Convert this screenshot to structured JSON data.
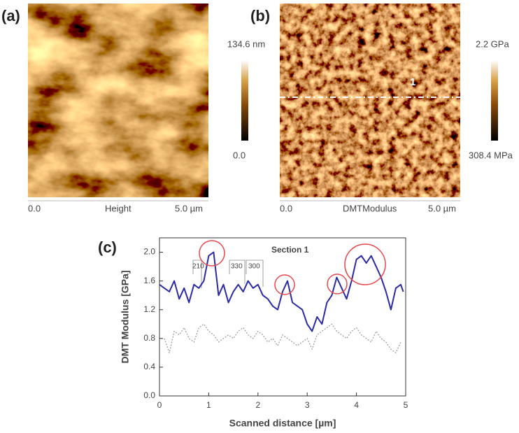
{
  "panels": [
    {
      "label": "(a)",
      "bar_max": "134.6 nm",
      "bar_min": "0.0",
      "axis_start": "0.0",
      "axis_name": "Height",
      "axis_end": "5.0 µm"
    },
    {
      "label": "(b)",
      "bar_max": "2.2 GPa",
      "bar_min": "308.4 MPa",
      "axis_start": "0.0",
      "axis_name": "DMTModulus",
      "axis_end": "5.0 µm",
      "section_label": "1"
    }
  ],
  "chart_data": {
    "type": "line",
    "panel_label": "(c)",
    "title": "Section 1",
    "xlabel": "Scanned distance [µm]",
    "ylabel": "DMT Modulus [GPa]",
    "annotations": [
      "210",
      "330",
      "300"
    ],
    "x": [
      0,
      0.1,
      0.2,
      0.3,
      0.4,
      0.5,
      0.6,
      0.7,
      0.8,
      0.9,
      1.0,
      1.1,
      1.2,
      1.3,
      1.4,
      1.5,
      1.6,
      1.7,
      1.8,
      1.9,
      2.0,
      2.1,
      2.2,
      2.3,
      2.4,
      2.5,
      2.6,
      2.7,
      2.8,
      2.9,
      3.0,
      3.1,
      3.2,
      3.3,
      3.4,
      3.5,
      3.6,
      3.7,
      3.8,
      3.9,
      4.0,
      4.1,
      4.2,
      4.3,
      4.4,
      4.5,
      4.6,
      4.7,
      4.8,
      4.9,
      4.95
    ],
    "series": [
      {
        "color": "#2b2ba3",
        "style": "solid",
        "values": [
          1.55,
          1.5,
          1.45,
          1.6,
          1.35,
          1.5,
          1.3,
          1.55,
          1.5,
          1.6,
          1.95,
          2.0,
          1.4,
          1.55,
          1.3,
          1.45,
          1.55,
          1.45,
          1.6,
          1.5,
          1.55,
          1.4,
          1.35,
          1.25,
          1.2,
          1.45,
          1.6,
          1.3,
          1.25,
          1.2,
          1.0,
          0.9,
          1.1,
          1.0,
          1.3,
          1.4,
          1.65,
          1.5,
          1.35,
          1.6,
          1.9,
          1.95,
          1.85,
          1.95,
          1.8,
          1.65,
          1.45,
          1.2,
          1.5,
          1.55,
          1.45
        ]
      },
      {
        "color": "#999999",
        "style": "dotted",
        "values": [
          null,
          0.8,
          0.6,
          0.9,
          0.85,
          0.95,
          0.8,
          0.75,
          0.95,
          1.0,
          0.9,
          0.85,
          0.75,
          0.8,
          0.85,
          0.8,
          0.9,
          0.95,
          0.85,
          0.8,
          0.9,
          0.85,
          0.75,
          0.8,
          0.7,
          0.85,
          0.8,
          0.75,
          0.7,
          0.75,
          0.8,
          0.65,
          0.85,
          0.9,
          0.95,
          1.0,
          0.9,
          0.85,
          0.8,
          0.9,
          0.95,
          0.85,
          0.8,
          0.75,
          0.9,
          0.8,
          0.75,
          0.65,
          0.6,
          0.75,
          null
        ]
      }
    ],
    "xlim": [
      0,
      5
    ],
    "xticks": [
      0,
      1,
      2,
      3,
      4,
      5
    ],
    "ylim": [
      0,
      2.2
    ],
    "yticks": [
      {
        "value": 0,
        "label": "0.0"
      },
      {
        "value": 0.4,
        "label": "0.4"
      },
      {
        "value": 0.8,
        "label": "0.8"
      },
      {
        "value": 1.2,
        "label": "1.2"
      },
      {
        "value": 1.6,
        "label": "1.6"
      },
      {
        "value": 2.0,
        "label": "2.0"
      }
    ]
  }
}
